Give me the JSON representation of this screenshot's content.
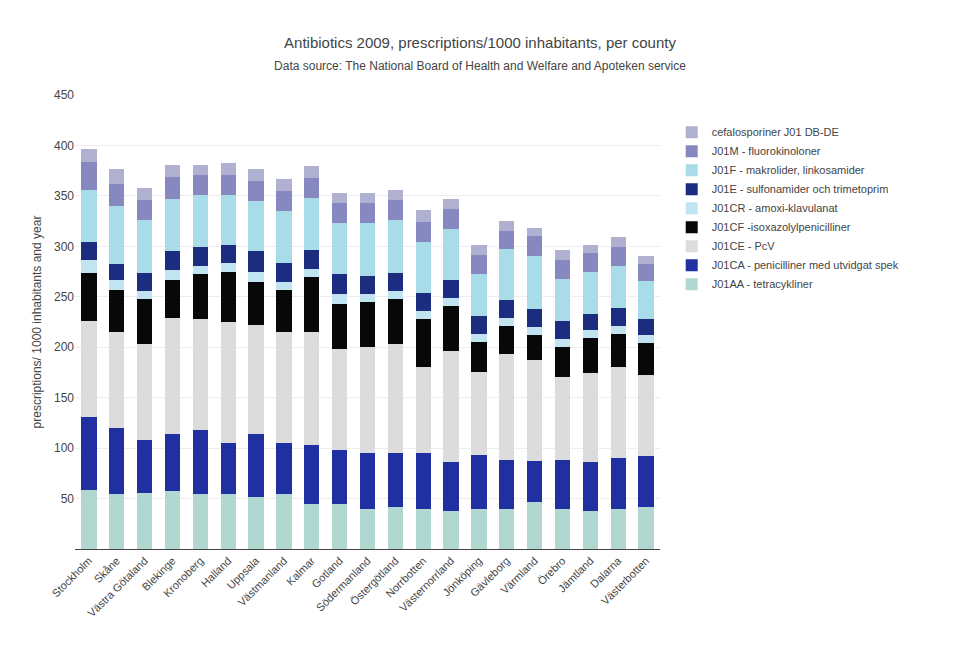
{
  "chart_data": {
    "type": "bar",
    "stacked": true,
    "title": "Antibiotics 2009, prescriptions/1000 inhabitants, per county",
    "subtitle": "Data source: The National Board of Health and Welfare and Apoteken service",
    "ylabel": "prescriptions/ 1000 inhabitants and year",
    "categories": [
      "Stockholm",
      "Skåne",
      "Västra Götaland",
      "Blekinge",
      "Kronoberg",
      "Halland",
      "Uppsala",
      "Västmanland",
      "Kalmar",
      "Gotland",
      "Södermanland",
      "Östergötland",
      "Norrbotten",
      "Västernorrland",
      "Jönköping",
      "Gävleborg",
      "Värmland",
      "Örebro",
      "Jämtland",
      "Dalarna",
      "Västerbotten"
    ],
    "series": [
      {
        "name": "J01AA - tetracykliner",
        "color": "#b0d8d0",
        "values": [
          58,
          55,
          56,
          57,
          55,
          55,
          52,
          55,
          45,
          45,
          40,
          42,
          40,
          38,
          40,
          40,
          47,
          40,
          38,
          40,
          42
        ]
      },
      {
        "name": "J01CA - penicilliner med utvidgat spek",
        "color": "#2030a0",
        "values": [
          73,
          65,
          52,
          57,
          63,
          50,
          62,
          50,
          58,
          53,
          55,
          53,
          55,
          48,
          53,
          48,
          40,
          48,
          48,
          50,
          50
        ]
      },
      {
        "name": "J01CE - PcV",
        "color": "#dcdcdc",
        "values": [
          95,
          95,
          95,
          115,
          110,
          120,
          108,
          110,
          112,
          100,
          105,
          108,
          85,
          110,
          82,
          105,
          100,
          82,
          88,
          90,
          80
        ]
      },
      {
        "name": "J01CF -isoxazolylpenicilliner",
        "color": "#080808",
        "values": [
          48,
          42,
          45,
          38,
          45,
          50,
          43,
          42,
          55,
          45,
          45,
          45,
          48,
          45,
          30,
          28,
          25,
          30,
          35,
          33,
          32
        ]
      },
      {
        "name": "J01CR - amoxi-klavulanat",
        "color": "#c0e4f0",
        "values": [
          12,
          10,
          8,
          10,
          8,
          8,
          10,
          8,
          8,
          10,
          8,
          8,
          8,
          8,
          8,
          8,
          8,
          8,
          8,
          8,
          8
        ]
      },
      {
        "name": "J01E - sulfonamider och trimetoprim",
        "color": "#1c2d80",
        "values": [
          18,
          15,
          18,
          18,
          18,
          18,
          20,
          18,
          18,
          20,
          18,
          18,
          18,
          18,
          18,
          18,
          18,
          18,
          16,
          18,
          16
        ]
      },
      {
        "name": "J01F - makrolider, linkosamider",
        "color": "#a8dce8",
        "values": [
          52,
          58,
          52,
          52,
          52,
          50,
          50,
          52,
          52,
          50,
          52,
          52,
          50,
          50,
          42,
          50,
          52,
          42,
          42,
          42,
          38
        ]
      },
      {
        "name": "J01M - fluorokinoloner",
        "color": "#8888c0",
        "values": [
          28,
          22,
          20,
          22,
          20,
          20,
          20,
          20,
          20,
          20,
          20,
          20,
          20,
          20,
          18,
          18,
          20,
          18,
          18,
          18,
          16
        ]
      },
      {
        "name": "cefalosporiner J01 DB-DE",
        "color": "#b0b0d0",
        "values": [
          12,
          15,
          12,
          12,
          10,
          12,
          12,
          12,
          12,
          10,
          10,
          10,
          12,
          10,
          10,
          10,
          8,
          10,
          8,
          10,
          8
        ]
      }
    ],
    "ylim": [
      0,
      450
    ],
    "yticks": [
      50,
      100,
      150,
      200,
      250,
      300,
      350,
      400,
      450
    ],
    "grid": true,
    "legend": "right"
  }
}
